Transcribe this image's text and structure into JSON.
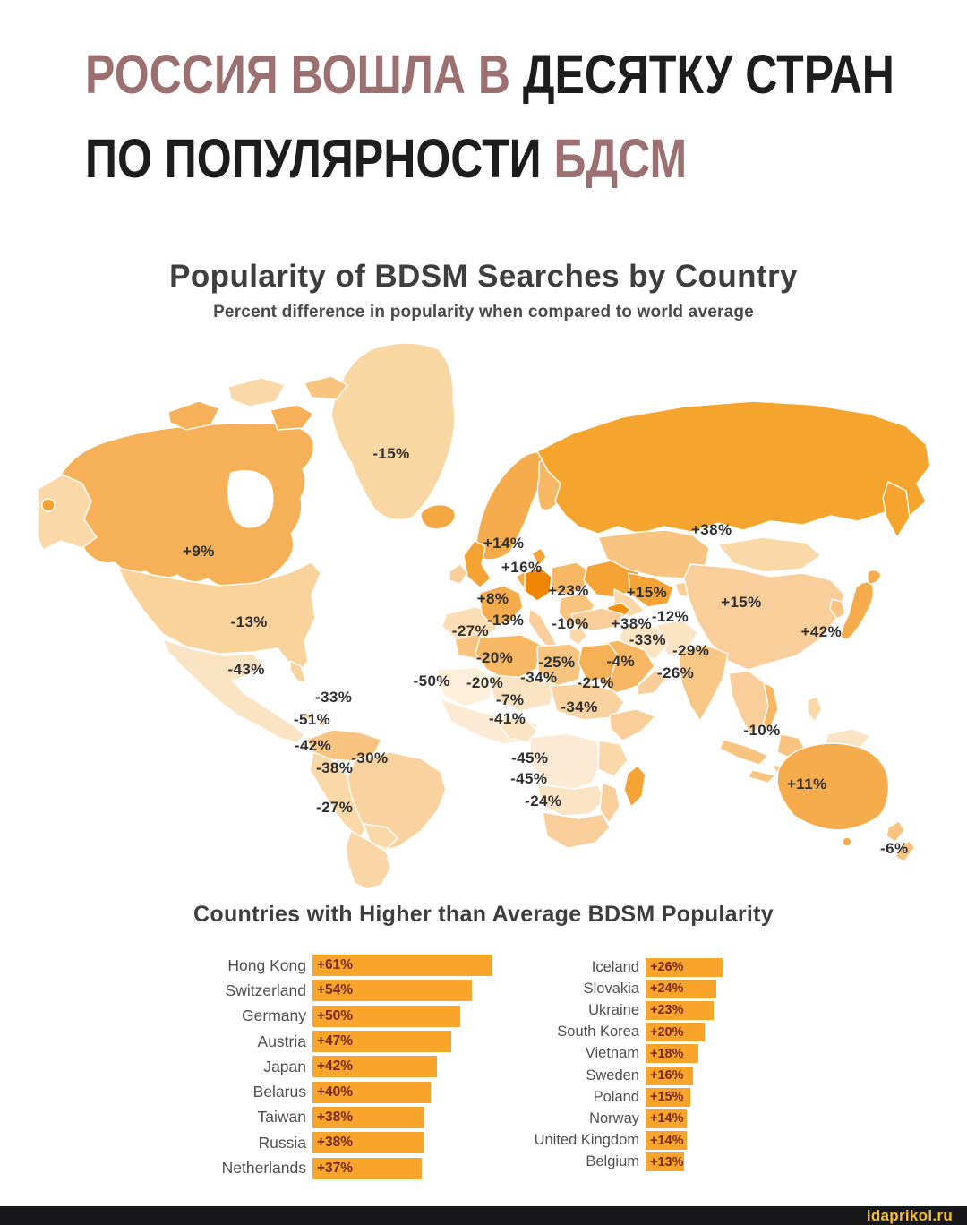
{
  "headline": {
    "line1_accent": "РОССИЯ ВОШЛА В",
    "line1_rest": " ДЕСЯТКУ СТРАН",
    "line2_rest": "ПО ПОПУЛЯРНОСТИ",
    "line2_accent": " БДСМ"
  },
  "infographic": {
    "title": "Popularity of BDSM Searches by Country",
    "subtitle": "Percent difference in popularity when compared to world average",
    "section_title": "Countries with Higher than Average BDSM Popularity"
  },
  "watermark": {
    "text": "idaprikol.ru"
  },
  "colors": {
    "headline_accent": "#9C7070",
    "headline_dark": "#1D1D1D",
    "chart_title": "#3E3E3E",
    "subtitle": "#4A4A4A",
    "map_label": "#303030",
    "bar_fill": "#F9A42B",
    "bar_value": "#7B2A22",
    "country_label": "#4F4F4F",
    "watermark_bg": "#18181A",
    "watermark_text": "#F6C026"
  },
  "chart_data": [
    {
      "type": "heatmap",
      "subtype": "choropleth-world-map",
      "title": "Popularity of BDSM Searches by Country",
      "subtitle": "Percent difference in popularity when compared to world average",
      "legend": "none",
      "note": "Darker orange = higher than world average, pale cream = lower; x/y are label positions in % of map area",
      "points": [
        {
          "region": "Greenland",
          "label": "-15%",
          "value": -15,
          "x": 39.5,
          "y": 22.2
        },
        {
          "region": "Canada",
          "label": "+9%",
          "value": 9,
          "x": 18.1,
          "y": 39.7
        },
        {
          "region": "United States",
          "label": "-13%",
          "value": -13,
          "x": 23.7,
          "y": 52.3
        },
        {
          "region": "Mexico",
          "label": "-43%",
          "value": -43,
          "x": 23.4,
          "y": 60.8
        },
        {
          "region": "Venezuela",
          "label": "-33%",
          "value": -33,
          "x": 33.1,
          "y": 65.8
        },
        {
          "region": "Colombia",
          "label": "-51%",
          "value": -51,
          "x": 30.7,
          "y": 69.8
        },
        {
          "region": "Peru",
          "label": "-42%",
          "value": -42,
          "x": 30.8,
          "y": 74.4
        },
        {
          "region": "Brazil",
          "label": "-30%",
          "value": -30,
          "x": 37.1,
          "y": 76.6
        },
        {
          "region": "Bolivia",
          "label": "-38%",
          "value": -38,
          "x": 33.2,
          "y": 78.4
        },
        {
          "region": "Argentina",
          "label": "-27%",
          "value": -27,
          "x": 33.2,
          "y": 85.4
        },
        {
          "region": "Norway Sweden",
          "label": "+14%",
          "value": 14,
          "x": 52.0,
          "y": 38.2
        },
        {
          "region": "Denmark Germany",
          "label": "+16%",
          "value": 16,
          "x": 54.0,
          "y": 42.6
        },
        {
          "region": "France",
          "label": "+8%",
          "value": 8,
          "x": 50.8,
          "y": 48.2
        },
        {
          "region": "Spain",
          "label": "-13%",
          "value": -13,
          "x": 52.2,
          "y": 52.0
        },
        {
          "region": "Portugal",
          "label": "-27%",
          "value": -27,
          "x": 48.3,
          "y": 53.9
        },
        {
          "region": "Belarus Ukraine",
          "label": "+23%",
          "value": 23,
          "x": 59.2,
          "y": 46.7
        },
        {
          "region": "Turkey",
          "label": "-10%",
          "value": -10,
          "x": 59.4,
          "y": 52.6
        },
        {
          "region": "Russia",
          "label": "+38%",
          "value": 38,
          "x": 75.1,
          "y": 35.8
        },
        {
          "region": "Kazakhstan",
          "label": "+15%",
          "value": 15,
          "x": 67.9,
          "y": 47.0
        },
        {
          "region": "Mongolia",
          "label": "+15%",
          "value": 15,
          "x": 78.4,
          "y": 48.8
        },
        {
          "region": "Kyrgyzstan",
          "label": "-12%",
          "value": -12,
          "x": 70.5,
          "y": 51.4
        },
        {
          "region": "Uzbekistan Turkmenistan",
          "label": "+38%",
          "value": 38,
          "x": 66.2,
          "y": 52.6
        },
        {
          "region": "Afghanistan Pakistan",
          "label": "-33%",
          "value": -33,
          "x": 68.0,
          "y": 55.5
        },
        {
          "region": "China",
          "label": "-29%",
          "value": -29,
          "x": 72.8,
          "y": 57.4
        },
        {
          "region": "Iraq Saudi Arabia",
          "label": "-4%",
          "value": -4,
          "x": 65.0,
          "y": 59.4
        },
        {
          "region": "India",
          "label": "-26%",
          "value": -26,
          "x": 71.1,
          "y": 61.4
        },
        {
          "region": "Japan",
          "label": "+42%",
          "value": 42,
          "x": 87.3,
          "y": 54.1
        },
        {
          "region": "Indonesia",
          "label": "-10%",
          "value": -10,
          "x": 80.7,
          "y": 71.7
        },
        {
          "region": "Australia",
          "label": "+11%",
          "value": 11,
          "x": 85.7,
          "y": 81.3
        },
        {
          "region": "New Zealand",
          "label": "-6%",
          "value": -6,
          "x": 95.4,
          "y": 92.8
        },
        {
          "region": "Mauritania West Africa",
          "label": "-50%",
          "value": -50,
          "x": 44.0,
          "y": 62.9
        },
        {
          "region": "Algeria",
          "label": "-20%",
          "value": -20,
          "x": 51.0,
          "y": 58.7
        },
        {
          "region": "Mali",
          "label": "-20%",
          "value": -20,
          "x": 49.9,
          "y": 63.2
        },
        {
          "region": "Libya",
          "label": "-25%",
          "value": -25,
          "x": 57.9,
          "y": 59.5
        },
        {
          "region": "Egypt",
          "label": "-34%",
          "value": -34,
          "x": 55.9,
          "y": 62.2
        },
        {
          "region": "Saudi Arabia Yemen",
          "label": "-21%",
          "value": -21,
          "x": 62.2,
          "y": 63.2
        },
        {
          "region": "Chad",
          "label": "-7%",
          "value": -7,
          "x": 52.7,
          "y": 66.2
        },
        {
          "region": "Ethiopia",
          "label": "-34%",
          "value": -34,
          "x": 60.4,
          "y": 67.5
        },
        {
          "region": "Nigeria",
          "label": "-41%",
          "value": -41,
          "x": 52.4,
          "y": 69.6
        },
        {
          "region": "DR Congo",
          "label": "-45%",
          "value": -45,
          "x": 54.9,
          "y": 76.6
        },
        {
          "region": "Angola Zambia",
          "label": "-45%",
          "value": -45,
          "x": 54.8,
          "y": 80.3
        },
        {
          "region": "South Africa",
          "label": "-24%",
          "value": -24,
          "x": 56.4,
          "y": 84.3
        }
      ]
    },
    {
      "type": "bar",
      "orientation": "horizontal",
      "title": "Countries with Higher than Average BDSM Popularity",
      "value_range": [
        0,
        65
      ],
      "columns": [
        {
          "categories": [
            "Hong Kong",
            "Switzerland",
            "Germany",
            "Austria",
            "Japan",
            "Belarus",
            "Taiwan",
            "Russia",
            "Netherlands"
          ],
          "values": [
            61,
            54,
            50,
            47,
            42,
            40,
            38,
            38,
            37
          ],
          "value_labels": [
            "+61%",
            "+54%",
            "+50%",
            "+47%",
            "+42%",
            "+40%",
            "+38%",
            "+38%",
            "+37%"
          ]
        },
        {
          "categories": [
            "Iceland",
            "Slovakia",
            "Ukraine",
            "South Korea",
            "Vietnam",
            "Sweden",
            "Poland",
            "Norway",
            "United Kingdom",
            "Belgium"
          ],
          "values": [
            26,
            24,
            23,
            20,
            18,
            16,
            15,
            14,
            14,
            13
          ],
          "value_labels": [
            "+26%",
            "+24%",
            "+23%",
            "+20%",
            "+18%",
            "+16%",
            "+15%",
            "+14%",
            "+14%",
            "+13%"
          ]
        }
      ]
    }
  ]
}
